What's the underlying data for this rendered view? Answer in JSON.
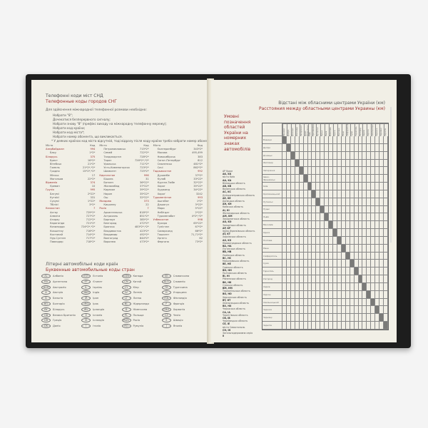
{
  "left_page": {
    "title_ua": "Телефонні коди міст СНД",
    "title_ru": "Телефонные коды городов СНГ",
    "intro": "Для здійснення міжнародної телефонної розмови необхідно:",
    "steps": [
      "Набрати \"8\";",
      "Дочекатися безперервного сигналу;",
      "Набрати знову \"8\" (префікс виходу на міжнародну телефонну мережу);",
      "Набрати код країни;",
      "Набрати код міста*;",
      "Набрати номер абонента, що викликається.",
      "* У деяких країнах код міста відсутній, тоді відразу після коду країни треба набрати номер абонента."
    ],
    "col_head": {
      "city": "Місто",
      "code": "Код"
    },
    "city_columns": [
      [
        [
          "Азербайджан",
          "994",
          "c"
        ],
        [
          "Баку",
          "1*2*",
          "s"
        ],
        [
          "Білорусь",
          "375",
          "c"
        ],
        [
          "Брест",
          "16*2*",
          "s"
        ],
        [
          "Вітебськ",
          "21*2*",
          "s"
        ],
        [
          "Гомель",
          "21*2*,*2*",
          "s"
        ],
        [
          "Гродно",
          "15*2*,*2*",
          "s"
        ],
        [
          "Мінськ",
          "17",
          "s"
        ],
        [
          "Могильов",
          "22*2*",
          "s"
        ],
        [
          "Вірменія",
          "374",
          "c"
        ],
        [
          "Єреван",
          "10",
          "s"
        ],
        [
          "Грузія",
          "995",
          "c"
        ],
        [
          "Батумі",
          "2*22*",
          "s"
        ],
        [
          "Кутаїсі",
          "331",
          "s"
        ],
        [
          "Сухумі",
          "1*22*",
          "s"
        ],
        [
          "Тбілісі",
          "3*2*",
          "s"
        ],
        [
          "Казахстан",
          "7",
          "c"
        ],
        [
          "Актау",
          "729*2*",
          "s"
        ],
        [
          "Алмати",
          "727*2*",
          "s"
        ],
        [
          "Атирау",
          "712*2*",
          "s"
        ],
        [
          "Караганда",
          "721*2*",
          "s"
        ],
        [
          "Кизилорда",
          "724*2*,*2*",
          "s"
        ],
        [
          "Кокшетау",
          "716*2*",
          "s"
        ],
        [
          "Костанай",
          "714*2*",
          "s"
        ],
        [
          "Нур-Султан",
          "717*2*",
          "s"
        ],
        [
          "Павлодар",
          "718*2*",
          "s"
        ]
      ],
      [
        [
          "Петропавловськ",
          "715*2*",
          "s"
        ],
        [
          "Семей",
          "722*2*",
          "s"
        ],
        [
          "Талдикорган",
          "728*2*",
          "s"
        ],
        [
          "Тараз",
          "726*2*,*2*",
          "s"
        ],
        [
          "Уральськ",
          "711*2*",
          "s"
        ],
        [
          "Усть-Каменогорськ",
          "723*2*",
          "s"
        ],
        [
          "Шимкент",
          "725*2*",
          "s"
        ],
        [
          "Киргизстан",
          "996",
          "c"
        ],
        [
          "Бішкек",
          "31",
          "s"
        ],
        [
          "Баткен",
          "36*22*",
          "s"
        ],
        [
          "Жалалабад",
          "37*22*",
          "s"
        ],
        [
          "Каракол",
          "39*22*",
          "s"
        ],
        [
          "Нарин",
          "35*22*",
          "s"
        ],
        [
          "Ош",
          "32*22*",
          "s"
        ],
        [
          "Молдова",
          "373",
          "c"
        ],
        [
          "Кишинеу",
          "22",
          "s"
        ],
        [
          "Росія",
          "7",
          "c"
        ],
        [
          "Архангельськ",
          "818*2*",
          "s"
        ],
        [
          "Астрахань",
          "851*2*",
          "s"
        ],
        [
          "Барнаул",
          "385*2*",
          "s"
        ],
        [
          "Белгород",
          "472*2*",
          "s"
        ],
        [
          "Брянськ",
          "483*2*,*2*",
          "s"
        ],
        [
          "Владивосток",
          "423*2*",
          "s"
        ],
        [
          "Владимир",
          "492*2*",
          "s"
        ],
        [
          "Волгоград",
          "844*2*",
          "s"
        ],
        [
          "Воронеж",
          "473*2*",
          "s"
        ]
      ],
      [
        [
          "Єкатеринбург",
          "343*2*",
          "s"
        ],
        [
          "Москва",
          "495,499",
          "s"
        ],
        [
          "Новосибірськ",
          "383",
          "s"
        ],
        [
          "Санкт-Петербург",
          "812",
          "s"
        ],
        [
          "Смоленськ",
          "481*2*",
          "s"
        ],
        [
          "Сочі",
          "862*2*",
          "s"
        ],
        [
          "Таджикистан",
          "992",
          "c"
        ],
        [
          "Душанбе",
          "37*2*",
          "s"
        ],
        [
          "Куляб",
          "33*22*",
          "s"
        ],
        [
          "Курган-Тюбе",
          "32*22*",
          "s"
        ],
        [
          "Хорог",
          "35*22*",
          "s"
        ],
        [
          "Худжанд",
          "34*22*",
          "s"
        ],
        [
          "Хороґ",
          "3242",
          "s"
        ],
        [
          "Туркменістан",
          "993",
          "c"
        ],
        [
          "Ашгабат",
          "1*2*",
          "s"
        ],
        [
          "Дашогуз",
          "3*22*",
          "s"
        ],
        [
          "Мари",
          "5*22*",
          "s"
        ],
        [
          "Небітдаг",
          "2*22*",
          "s"
        ],
        [
          "Туркменабат",
          "4*2*,*2*",
          "s"
        ],
        [
          "Узбекистан",
          "998",
          "c"
        ],
        [
          "Бухара",
          "65*22*",
          "s"
        ],
        [
          "Гулістан",
          "67*2*",
          "s"
        ],
        [
          "Самарканд",
          "66*2*",
          "s"
        ],
        [
          "Ташкент",
          "71,71*2*",
          "s"
        ],
        [
          "Ургенч",
          "62",
          "s"
        ],
        [
          "Фергана",
          "73*2*",
          "s"
        ]
      ]
    ],
    "codes_title_ua": "Літерні автомобільні коди країн",
    "codes_title_ru": "Буквенные автомобильные коды стран",
    "car_codes": [
      [
        "AL",
        "Албанія"
      ],
      [
        "EST",
        "Естонія"
      ],
      [
        "CDN",
        "Канада"
      ],
      [
        "SK",
        "Словаччина"
      ],
      [
        "RA",
        "Аргентина"
      ],
      [
        "ET",
        "Єгипет"
      ],
      [
        "CN",
        "Китай"
      ],
      [
        "SLO",
        "Словенія"
      ],
      [
        "AUS",
        "Австралія"
      ],
      [
        "IL",
        "Ізраїль"
      ],
      [
        "CY",
        "Кіпр"
      ],
      [
        "TR",
        "Туреччина"
      ],
      [
        "A",
        "Австрія"
      ],
      [
        "IND",
        "Індія"
      ],
      [
        "LV",
        "Латвія"
      ],
      [
        "H",
        "Угорщина"
      ],
      [
        "B",
        "Бельгія"
      ],
      [
        "IR",
        "Іран"
      ],
      [
        "LT",
        "Литва"
      ],
      [
        "FIN",
        "Фінляндія"
      ],
      [
        "BG",
        "Болгарія"
      ],
      [
        "IRQ",
        "Ірак"
      ],
      [
        "NL",
        "Нідерланди"
      ],
      [
        "F",
        "Франція"
      ],
      [
        "BY",
        "Білорусь"
      ],
      [
        "IRL",
        "Ірландія"
      ],
      [
        "D",
        "Німеччина"
      ],
      [
        "CRO",
        "Хорватія"
      ],
      [
        "GB",
        "Велика Британія"
      ],
      [
        "E",
        "Іспанія"
      ],
      [
        "PL",
        "Польща"
      ],
      [
        "CZ",
        "Чехія"
      ],
      [
        "GR",
        "Греція"
      ],
      [
        "IS",
        "Ісландія"
      ],
      [
        "RUS",
        "Росія"
      ],
      [
        "S",
        "Швеція"
      ],
      [
        "DK",
        "Данія"
      ],
      [
        "I",
        "Італія"
      ],
      [
        "RO",
        "Румунія"
      ],
      [
        "J",
        "Японія"
      ]
    ]
  },
  "right_page": {
    "title_ua": "Відстані між обласними центрами України (км)",
    "title_ru": "Расстояния между областными центрами Украины (км)",
    "side_heading": "Умовні позначення областей України на номерних знаках автомобілів",
    "regions": [
      [
        "АР Крим",
        "AK, KK"
      ],
      [
        "місто Київ",
        "AA, KA"
      ],
      [
        "Вінницька область",
        "AB, KB"
      ],
      [
        "Волинська область",
        "AC, KC"
      ],
      [
        "Дніпропетровська область",
        "AE, KE"
      ],
      [
        "Донецька область",
        "AH, KH"
      ],
      [
        "Київська область",
        "AI, KI"
      ],
      [
        "Житомирська область",
        "AM, KM"
      ],
      [
        "Закарпатська область",
        "AO, KO"
      ],
      [
        "Запорізька область",
        "AP, KP"
      ],
      [
        "Івано-Франківська область",
        "AT, KT"
      ],
      [
        "Харківська область",
        "AX, KX"
      ],
      [
        "Кіровоградська область",
        "BA, HA"
      ],
      [
        "Луганська область",
        "BB, HB"
      ],
      [
        "Львівська область",
        "BC, HC"
      ],
      [
        "Миколаївська область",
        "BE, HE"
      ],
      [
        "Одеська область",
        "BH, HH"
      ],
      [
        "Полтавська область",
        "BI, HI"
      ],
      [
        "Рівненська область",
        "BK, HK"
      ],
      [
        "Сумська область",
        "BM, HM"
      ],
      [
        "Тернопільська область",
        "BO, HO"
      ],
      [
        "Херсонська область",
        "BT, HT"
      ],
      [
        "Хмельницька область",
        "BX, HX"
      ],
      [
        "Черкаська область",
        "CA, IA"
      ],
      [
        "Чернігівська область",
        "CB, IB"
      ],
      [
        "Чернівецька область",
        "CE, IE"
      ],
      [
        "місто Севастополь",
        "CH, IH"
      ],
      [
        "Загальнодержавна серія",
        "II"
      ]
    ],
    "cities": [
      "Вінниця",
      "Дніпро",
      "Донецьк",
      "Житомир",
      "Запоріжжя",
      "Івано-Франківськ",
      "Київ",
      "Кропивницький",
      "Луганськ",
      "Луцьк",
      "Львів",
      "Миколаїв",
      "Одеса",
      "Полтава",
      "Рівне",
      "Сімферополь",
      "Суми",
      "Тернопіль",
      "Ужгород",
      "Харків",
      "Херсон",
      "Хмельницький",
      "Черкаси",
      "Чернівці",
      "Чернігів"
    ]
  }
}
